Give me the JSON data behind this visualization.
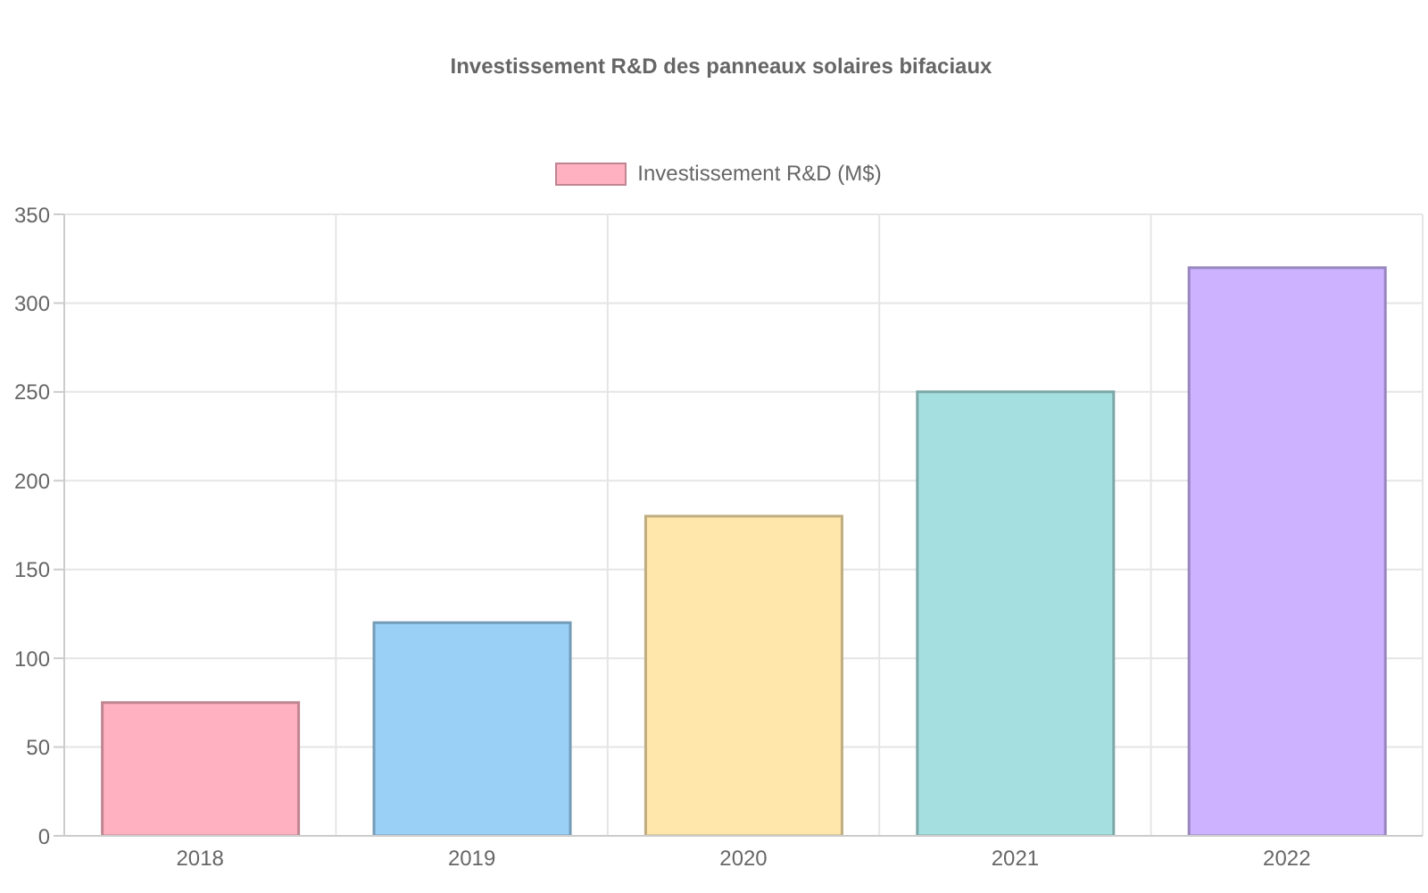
{
  "chart_data": {
    "type": "bar",
    "title": "Investissement R&D des panneaux solaires bifaciaux",
    "categories": [
      "2018",
      "2019",
      "2020",
      "2021",
      "2022"
    ],
    "series": [
      {
        "name": "Investissement R&D (M$)",
        "values": [
          75,
          120,
          180,
          250,
          320
        ],
        "colors": [
          "#ffb1c1",
          "#9ad0f5",
          "#ffe6aa",
          "#a5dfdf",
          "#ccb2ff"
        ]
      }
    ],
    "ylim": [
      0,
      350
    ],
    "yticks": [
      0,
      50,
      100,
      150,
      200,
      250,
      300,
      350
    ],
    "grid": true,
    "legend": "top"
  }
}
